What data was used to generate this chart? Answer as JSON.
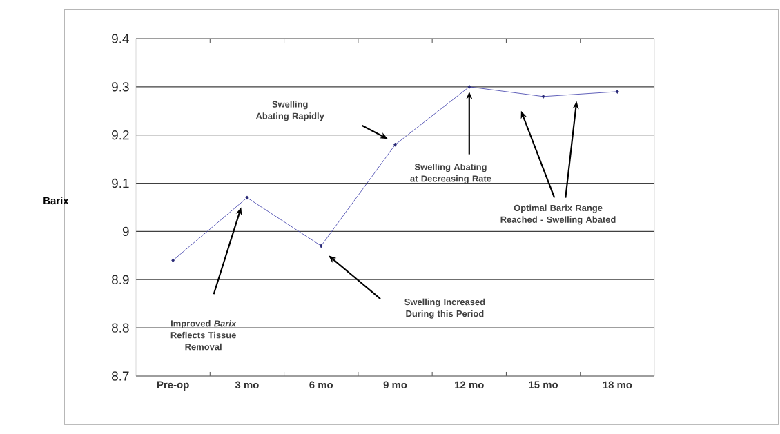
{
  "chart_data": {
    "type": "line",
    "ylabel": "Barix",
    "categories": [
      "Pre-op",
      "3 mo",
      "6 mo",
      "9 mo",
      "12 mo",
      "15 mo",
      "18 mo"
    ],
    "values": [
      8.94,
      9.07,
      8.97,
      9.18,
      9.3,
      9.28,
      9.29
    ],
    "color": "#3a3aa8",
    "marker": "diamond",
    "line_style": "solid",
    "ylim": [
      8.7,
      9.4
    ],
    "yticks": [
      8.7,
      8.8,
      8.9,
      9,
      9.1,
      9.2,
      9.3,
      9.4
    ],
    "grid": "y",
    "annotations": [
      "Improved *Barix* Reflects Tissue Removal",
      "Swelling Increased During this Period",
      "Swelling Abating Rapidly",
      "Swelling Abating at Decreasing Rate",
      "Optimal Barix Range Reached - Swelling Abated"
    ]
  }
}
